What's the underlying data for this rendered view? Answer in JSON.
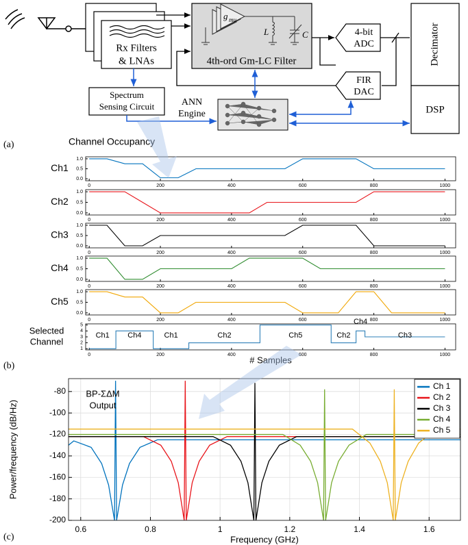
{
  "diagram": {
    "rx": [
      "Rx Filters",
      "& LNAs"
    ],
    "gm_filter": "4th-ord Gm-LC Filter",
    "gm": "g",
    "gm_sub": "mu",
    "inductor": "L",
    "capacitor": "C",
    "adc": [
      "4-bit",
      "ADC"
    ],
    "dac": [
      "FIR",
      "DAC"
    ],
    "decimator": "Decimator",
    "dsp": "DSP",
    "sensing": [
      "Spectrum",
      "Sensing Circuit"
    ],
    "ann": [
      "ANN",
      "Engine"
    ]
  },
  "panel_labels": [
    "(a)",
    "(b)",
    "(c)"
  ],
  "occupancy_title": "Channel Occupancy",
  "chart_data": [
    {
      "type": "line",
      "ylabel": "Ch1",
      "color": "#0072bd",
      "xlim": [
        -10,
        1030
      ],
      "ylim": [
        -0.1,
        1.1
      ],
      "xticks": [
        0,
        200,
        400,
        600,
        800,
        1000
      ],
      "yticks": [
        {
          "value": 0,
          "label": "0.0"
        },
        {
          "value": 0.5,
          "label": "0.5"
        },
        {
          "value": 1,
          "label": "1.0"
        }
      ],
      "x": [
        0,
        50,
        100,
        150,
        200,
        250,
        300,
        550,
        600,
        750,
        800,
        1000
      ],
      "values": [
        1,
        1,
        0.75,
        0.75,
        0.05,
        0.05,
        0.5,
        0.5,
        1,
        1,
        0.5,
        0.5
      ]
    },
    {
      "type": "line",
      "ylabel": "Ch2",
      "color": "#e8141a",
      "xlim": [
        -10,
        1030
      ],
      "ylim": [
        -0.1,
        1.1
      ],
      "xticks": [
        0,
        200,
        400,
        600,
        800,
        1000
      ],
      "yticks": [
        {
          "value": 0,
          "label": "0.0"
        },
        {
          "value": 0.5,
          "label": "0.5"
        },
        {
          "value": 1,
          "label": "1.0"
        }
      ],
      "x": [
        0,
        100,
        150,
        200,
        450,
        500,
        750,
        800,
        1000
      ],
      "values": [
        1,
        1,
        0.5,
        0,
        0,
        0.5,
        0.5,
        1,
        1
      ]
    },
    {
      "type": "line",
      "ylabel": "Ch3",
      "color": "#000000",
      "xlim": [
        -10,
        1030
      ],
      "ylim": [
        -0.1,
        1.1
      ],
      "xticks": [
        0,
        200,
        400,
        600,
        800,
        1000
      ],
      "yticks": [
        {
          "value": 0,
          "label": "0.0"
        },
        {
          "value": 0.5,
          "label": "0.5"
        },
        {
          "value": 1,
          "label": "1.0"
        }
      ],
      "x": [
        0,
        50,
        100,
        150,
        200,
        550,
        600,
        750,
        800,
        1000
      ],
      "values": [
        1,
        1,
        0,
        0,
        0.5,
        0.5,
        1,
        1,
        0,
        0
      ]
    },
    {
      "type": "line",
      "ylabel": "Ch4",
      "color": "#2e8b2e",
      "xlim": [
        -10,
        1030
      ],
      "ylim": [
        -0.1,
        1.1
      ],
      "xticks": [
        0,
        200,
        400,
        600,
        800,
        1000
      ],
      "yticks": [
        {
          "value": 0,
          "label": "0.0"
        },
        {
          "value": 0.5,
          "label": "0.5"
        },
        {
          "value": 1,
          "label": "1.0"
        }
      ],
      "x": [
        0,
        50,
        100,
        150,
        200,
        400,
        450,
        600,
        650,
        1000
      ],
      "values": [
        1,
        1,
        0,
        0,
        0.5,
        0.5,
        1,
        1,
        0.5,
        0.5
      ]
    },
    {
      "type": "line",
      "ylabel": "Ch5",
      "color": "#f0a500",
      "xlim": [
        -10,
        1030
      ],
      "ylim": [
        -0.1,
        1.1
      ],
      "xticks": [
        0,
        200,
        400,
        600,
        800,
        1000
      ],
      "yticks": [
        {
          "value": 0,
          "label": "0.0"
        },
        {
          "value": 0.5,
          "label": "0.5"
        },
        {
          "value": 1,
          "label": "1.0"
        }
      ],
      "x": [
        0,
        50,
        100,
        150,
        200,
        250,
        300,
        550,
        600,
        700,
        750,
        800,
        850,
        1000
      ],
      "values": [
        1,
        1,
        0.75,
        0.75,
        0,
        0,
        0.5,
        0.5,
        0,
        0,
        1,
        1,
        0,
        0
      ]
    },
    {
      "type": "line",
      "ylabel": [
        "Selected",
        "Channel"
      ],
      "xlabel": "# Samples",
      "color": "#2c7fb8",
      "xlim": [
        -10,
        1030
      ],
      "ylim": [
        0.8,
        5.2
      ],
      "xticks": [
        0,
        200,
        400,
        600,
        800,
        1000
      ],
      "yticks": [
        1,
        2,
        3,
        4,
        5
      ],
      "x": [
        0,
        75,
        75,
        180,
        180,
        280,
        280,
        480,
        480,
        680,
        680,
        750,
        750,
        775,
        775,
        1000
      ],
      "values": [
        1,
        1,
        4,
        4,
        1,
        1,
        2,
        2,
        5,
        5,
        2,
        2,
        4,
        4,
        3,
        3
      ],
      "segment_labels": [
        "Ch1",
        "Ch4",
        "Ch1",
        "Ch2",
        "Ch5",
        "Ch2",
        "Ch4",
        "Ch3"
      ]
    },
    {
      "type": "line",
      "xlabel": "Frequency (GHz)",
      "ylabel": "Power/frequency (dB/Hz)",
      "annotation": [
        "BP-ΣΔM",
        "Output"
      ],
      "grid": true,
      "legend": "upper right",
      "xlim": [
        0.565,
        1.69
      ],
      "ylim": [
        -200,
        -68
      ],
      "xticks": [
        0.6,
        0.8,
        1,
        1.2,
        1.4,
        1.6
      ],
      "yticks": [
        -200,
        -180,
        -160,
        -140,
        -120,
        -100,
        -80
      ],
      "series": [
        {
          "name": "Ch 1",
          "color": "#0072bd",
          "x": [
            0.565,
            0.58,
            0.63,
            0.66,
            0.68,
            0.697,
            0.7,
            0.703,
            0.72,
            0.74,
            0.77,
            0.82,
            1.69
          ],
          "values": [
            -130,
            -126,
            -132,
            -147,
            -167,
            -200,
            -70,
            -200,
            -167,
            -147,
            -132,
            -125,
            -125
          ]
        },
        {
          "name": "Ch 2",
          "color": "#e8141a",
          "x": [
            0.565,
            0.78,
            0.83,
            0.86,
            0.88,
            0.897,
            0.9,
            0.903,
            0.92,
            0.94,
            0.97,
            1.02,
            1.69
          ],
          "values": [
            -122,
            -122,
            -130,
            -145,
            -165,
            -200,
            -70,
            -200,
            -165,
            -145,
            -130,
            -122,
            -122
          ]
        },
        {
          "name": "Ch 3",
          "color": "#000000",
          "x": [
            0.565,
            0.98,
            1.03,
            1.06,
            1.08,
            1.097,
            1.1,
            1.103,
            1.12,
            1.14,
            1.17,
            1.22,
            1.69
          ],
          "values": [
            -122,
            -122,
            -130,
            -145,
            -165,
            -200,
            -72,
            -200,
            -165,
            -145,
            -130,
            -122,
            -122
          ]
        },
        {
          "name": "Ch 4",
          "color": "#77ac30",
          "x": [
            0.565,
            1.18,
            1.23,
            1.26,
            1.28,
            1.297,
            1.3,
            1.303,
            1.32,
            1.34,
            1.37,
            1.42,
            1.69
          ],
          "values": [
            -120,
            -120,
            -130,
            -145,
            -165,
            -200,
            -78,
            -200,
            -165,
            -145,
            -130,
            -120,
            -120
          ]
        },
        {
          "name": "Ch 5",
          "color": "#edb120",
          "x": [
            0.565,
            1.38,
            1.43,
            1.46,
            1.48,
            1.497,
            1.5,
            1.503,
            1.52,
            1.54,
            1.57,
            1.62,
            1.69
          ],
          "values": [
            -115,
            -115,
            -128,
            -145,
            -165,
            -200,
            -78,
            -200,
            -165,
            -145,
            -128,
            -115,
            -115
          ]
        }
      ]
    }
  ]
}
